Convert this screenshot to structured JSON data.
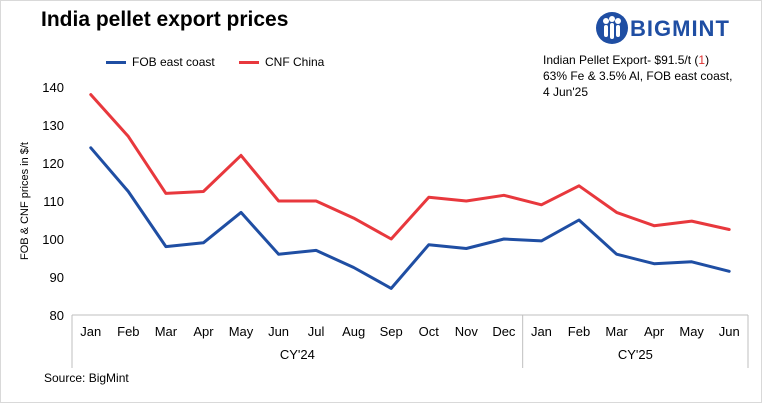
{
  "title": "India pellet export prices",
  "brand": {
    "name": "BIGMINT",
    "color": "#1f4ea3"
  },
  "note": {
    "line1_prefix": "Indian Pellet Export- $91.5/t (",
    "line1_change": "1",
    "line1_suffix": ")",
    "line2": "63% Fe & 3.5% Al, FOB east coast,",
    "line3": "4 Jun'25"
  },
  "source": "Source: BigMint",
  "chart_data": {
    "type": "line",
    "ylabel": "FOB & CNF prices in $/t",
    "ylim": [
      80,
      140
    ],
    "yticks": [
      80,
      90,
      100,
      110,
      120,
      130,
      140
    ],
    "grid": false,
    "legend_position": "top-left",
    "categories": [
      "Jan",
      "Feb",
      "Mar",
      "Apr",
      "May",
      "Jun",
      "Jul",
      "Aug",
      "Sep",
      "Oct",
      "Nov",
      "Dec",
      "Jan",
      "Feb",
      "Mar",
      "Apr",
      "May",
      "Jun"
    ],
    "groups": [
      {
        "label": "CY'24",
        "count": 12
      },
      {
        "label": "CY'25",
        "count": 6
      }
    ],
    "series": [
      {
        "name": "FOB east coast",
        "color": "#1f4ea3",
        "values": [
          124,
          112.5,
          98,
          99,
          107,
          96,
          97,
          92.5,
          87,
          98.5,
          97.5,
          100,
          99.5,
          105,
          96,
          93.5,
          94,
          91.5
        ]
      },
      {
        "name": "CNF China",
        "color": "#e8383d",
        "values": [
          138,
          127,
          112,
          112.5,
          122,
          110,
          110,
          105.5,
          100,
          111,
          110,
          111.5,
          109,
          114,
          107,
          103.5,
          104.7,
          102.5
        ]
      }
    ]
  }
}
